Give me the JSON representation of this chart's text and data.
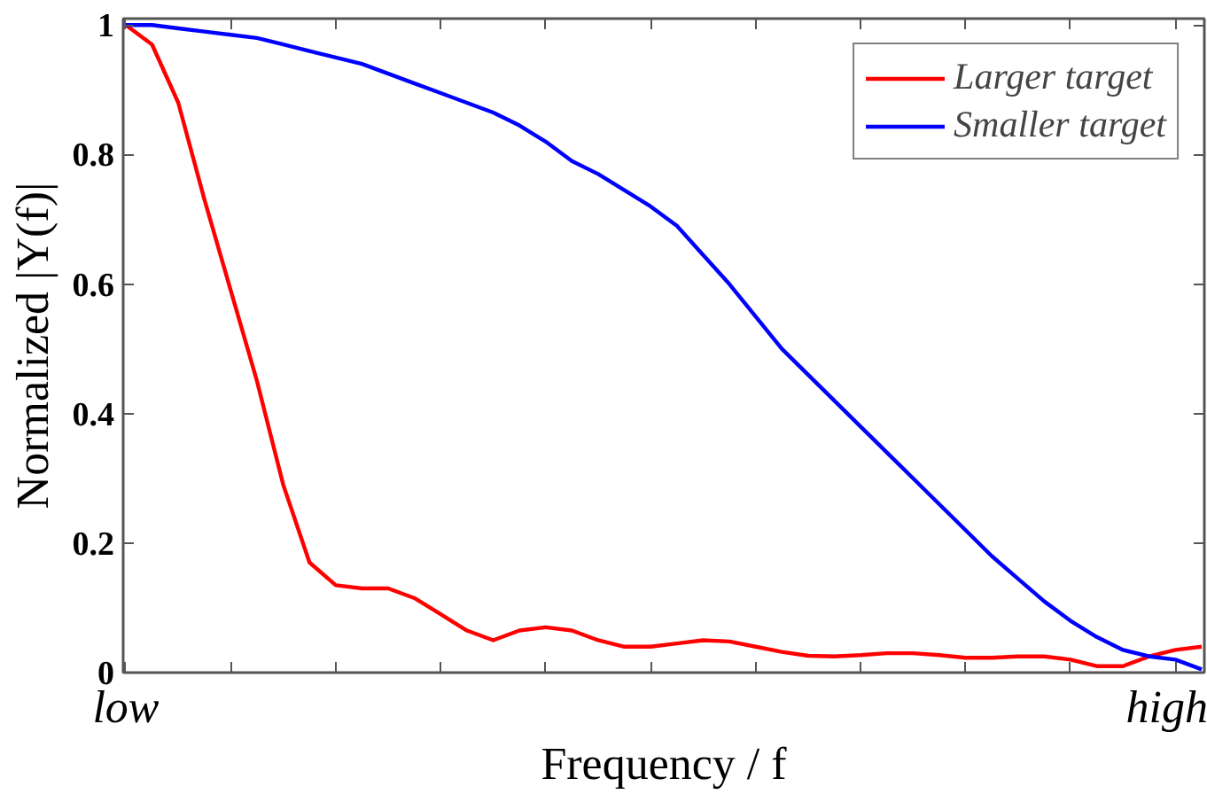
{
  "chart_data": {
    "type": "line",
    "xlabel": "Frequency / f",
    "ylabel": "Normalized |Y(f)|",
    "categories": [
      "low",
      null,
      null,
      null,
      null,
      null,
      null,
      null,
      null,
      null,
      null,
      null,
      null,
      null,
      null,
      null,
      null,
      null,
      null,
      null,
      null,
      null,
      null,
      null,
      null,
      null,
      null,
      null,
      null,
      null,
      null,
      null,
      null,
      null,
      null,
      null,
      null,
      null,
      null,
      null,
      "high",
      null
    ],
    "ylim": [
      0,
      1.01
    ],
    "yticks": [
      0,
      0.2,
      0.4,
      0.6,
      0.8,
      1
    ],
    "grid": false,
    "legend": "top right",
    "marker": "none",
    "line_style": "solid",
    "series": [
      {
        "name": "Larger target",
        "color": "#ff0000",
        "values": [
          1,
          0.97,
          0.88,
          0.73,
          0.59,
          0.45,
          0.29,
          0.17,
          0.135,
          0.13,
          0.13,
          0.115,
          0.09,
          0.065,
          0.05,
          0.065,
          0.07,
          0.065,
          0.05,
          0.04,
          0.04,
          0.045,
          0.05,
          0.048,
          0.04,
          0.032,
          0.026,
          0.025,
          0.027,
          0.03,
          0.03,
          0.027,
          0.023,
          0.023,
          0.025,
          0.025,
          0.02,
          0.01,
          0.01,
          0.025,
          0.035,
          0.04
        ]
      },
      {
        "name": "Smaller target",
        "color": "#0000ff",
        "values": [
          1,
          1,
          0.995,
          0.99,
          0.985,
          0.98,
          0.97,
          0.96,
          0.95,
          0.94,
          0.925,
          0.91,
          0.895,
          0.88,
          0.865,
          0.845,
          0.82,
          0.79,
          0.77,
          0.745,
          0.72,
          0.69,
          0.645,
          0.6,
          0.55,
          0.5,
          0.46,
          0.42,
          0.38,
          0.34,
          0.3,
          0.26,
          0.22,
          0.18,
          0.145,
          0.11,
          0.08,
          0.055,
          0.035,
          0.025,
          0.02,
          0.005
        ]
      }
    ]
  }
}
